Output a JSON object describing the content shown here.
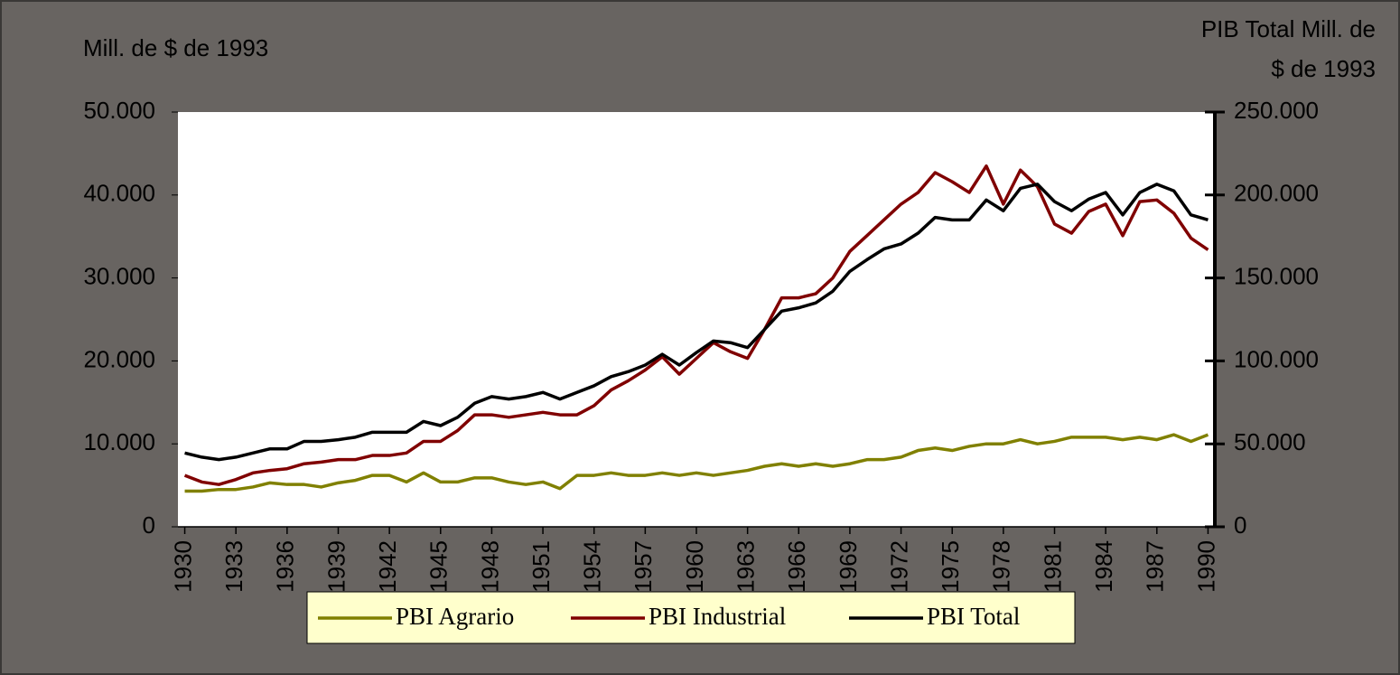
{
  "chart_data": {
    "type": "line",
    "ylabel": "Mill. de $ de 1993",
    "y2label": [
      "PIB Total Mill. de",
      "$ de 1993"
    ],
    "x": [
      1930,
      1931,
      1932,
      1933,
      1934,
      1935,
      1936,
      1937,
      1938,
      1939,
      1940,
      1941,
      1942,
      1943,
      1944,
      1945,
      1946,
      1947,
      1948,
      1949,
      1950,
      1951,
      1952,
      1953,
      1954,
      1955,
      1956,
      1957,
      1958,
      1959,
      1960,
      1961,
      1962,
      1963,
      1964,
      1965,
      1966,
      1967,
      1968,
      1969,
      1970,
      1971,
      1972,
      1973,
      1974,
      1975,
      1976,
      1977,
      1978,
      1979,
      1980,
      1981,
      1982,
      1983,
      1984,
      1985,
      1986,
      1987,
      1988,
      1989,
      1990
    ],
    "xlim": [
      1929.6,
      1990.4
    ],
    "xticks": [
      1930,
      1933,
      1936,
      1939,
      1942,
      1945,
      1948,
      1951,
      1954,
      1957,
      1960,
      1963,
      1966,
      1969,
      1972,
      1975,
      1978,
      1981,
      1984,
      1987,
      1990
    ],
    "ylim": [
      0,
      50000
    ],
    "yticks": [
      0,
      {
        "value": 10000,
        "label": "10.000"
      },
      {
        "value": 20000,
        "label": "20.000"
      },
      {
        "value": 30000,
        "label": "30.000"
      },
      {
        "value": 40000,
        "label": "40.000"
      },
      {
        "value": 50000,
        "label": "50.000"
      }
    ],
    "y2lim": [
      0,
      250000
    ],
    "y2ticks": [
      0,
      {
        "value": 50000,
        "label": "50.000"
      },
      {
        "value": 100000,
        "label": "100.000"
      },
      {
        "value": 150000,
        "label": "150.000"
      },
      {
        "value": 200000,
        "label": "200.000"
      },
      {
        "value": 250000,
        "label": "250.000"
      }
    ],
    "legend": "bottom",
    "series": [
      {
        "name": "PBI Agrario",
        "color": "#808000",
        "values": [
          4300,
          4300,
          4500,
          4500,
          4800,
          5300,
          5100,
          5100,
          4800,
          5300,
          5600,
          6200,
          6200,
          5400,
          6500,
          5400,
          5400,
          5900,
          5900,
          5400,
          5100,
          5400,
          4600,
          6200,
          6200,
          6500,
          6200,
          6200,
          6500,
          6200,
          6500,
          6200,
          6500,
          6800,
          7300,
          7600,
          7300,
          7600,
          7300,
          7600,
          8100,
          8100,
          8400,
          9200,
          9500,
          9200,
          9700,
          10000,
          10000,
          10500,
          10000,
          10300,
          10800,
          10800,
          10800,
          10500,
          10800,
          10500,
          11100,
          10300,
          11100
        ]
      },
      {
        "name": "PBI Industrial",
        "color": "#800000",
        "values": [
          6200,
          5400,
          5100,
          5700,
          6500,
          6800,
          7000,
          7600,
          7800,
          8100,
          8100,
          8600,
          8600,
          8900,
          10300,
          10300,
          11600,
          13500,
          13500,
          13200,
          13500,
          13800,
          13500,
          13500,
          14600,
          16500,
          17600,
          18900,
          20500,
          18400,
          20300,
          22200,
          21100,
          20300,
          23800,
          27600,
          27600,
          28100,
          30000,
          33200,
          35100,
          37000,
          38900,
          40300,
          42700,
          41600,
          40300,
          43500,
          38900,
          43000,
          41000,
          36500,
          35400,
          38000,
          38900,
          35100,
          39200,
          39400,
          37800,
          34800,
          33400
        ]
      },
      {
        "name": "PBI Total",
        "color": "#000000",
        "axis": "y2",
        "values": [
          44500,
          42000,
          40500,
          42000,
          44500,
          47000,
          47000,
          51500,
          51500,
          52500,
          54000,
          57000,
          57000,
          57000,
          63500,
          61000,
          66000,
          74500,
          78500,
          77000,
          78500,
          81000,
          77000,
          81000,
          85000,
          90500,
          93500,
          97500,
          104000,
          97500,
          105000,
          112000,
          111000,
          108000,
          119000,
          130000,
          132000,
          135000,
          142000,
          154000,
          161000,
          167500,
          170500,
          177000,
          186500,
          185000,
          185000,
          197000,
          190500,
          204000,
          206500,
          196000,
          190500,
          197500,
          201500,
          188000,
          201500,
          206500,
          202500,
          188000,
          185000
        ]
      }
    ]
  }
}
